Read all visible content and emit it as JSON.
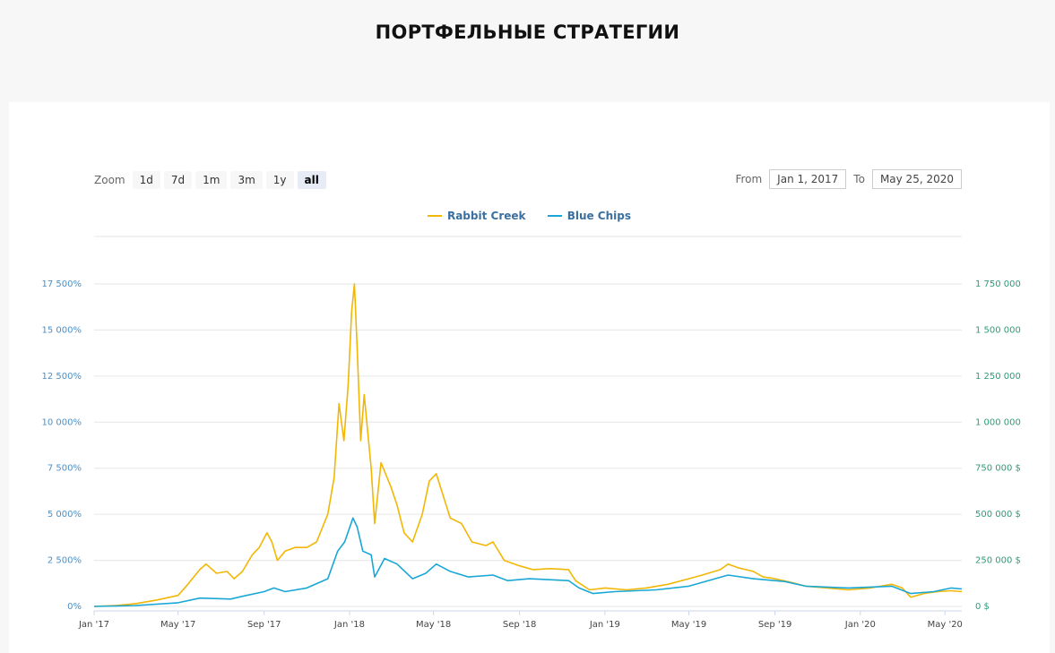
{
  "page": {
    "title": "ПОРТФЕЛЬНЫЕ СТРАТЕГИИ"
  },
  "zoom": {
    "label": "Zoom",
    "buttons": [
      "1d",
      "7d",
      "1m",
      "3m",
      "1y",
      "all"
    ],
    "selected": "all"
  },
  "range": {
    "from_label": "From",
    "from_value": "Jan 1, 2017",
    "to_label": "To",
    "to_value": "May 25, 2020"
  },
  "colors": {
    "rabbit_creek": "#f2b705",
    "blue_chips": "#1aa7d6"
  },
  "chart_data": {
    "type": "line",
    "x_range": [
      "2017-01-01",
      "2020-05-25"
    ],
    "x_ticks": [
      "Jan '17",
      "May '17",
      "Sep '17",
      "Jan '18",
      "May '18",
      "Sep '18",
      "Jan '19",
      "May '19",
      "Sep '19",
      "Jan '20",
      "May '20"
    ],
    "y_left_ticks": [
      "0%",
      "2 500%",
      "5 000%",
      "7 500%",
      "10 000%",
      "12 500%",
      "15 000%",
      "17 500%"
    ],
    "y_left_range": [
      0,
      17500
    ],
    "y_right_ticks": [
      "0 $",
      "250 000 $",
      "500 000 $",
      "750 000 $",
      "1 000 000",
      "1 250 000",
      "1 500 000",
      "1 750 000"
    ],
    "y_right_range": [
      0,
      1750000
    ],
    "grid": true,
    "legend_position": "top-center",
    "series": [
      {
        "name": "Rabbit Creek",
        "color": "#f2b705",
        "points": [
          [
            "2017-01-01",
            0
          ],
          [
            "2017-02-01",
            50
          ],
          [
            "2017-03-01",
            150
          ],
          [
            "2017-04-01",
            350
          ],
          [
            "2017-05-01",
            600
          ],
          [
            "2017-05-15",
            1200
          ],
          [
            "2017-06-01",
            2000
          ],
          [
            "2017-06-10",
            2300
          ],
          [
            "2017-06-25",
            1800
          ],
          [
            "2017-07-10",
            1900
          ],
          [
            "2017-07-20",
            1500
          ],
          [
            "2017-08-01",
            1900
          ],
          [
            "2017-08-15",
            2800
          ],
          [
            "2017-08-25",
            3200
          ],
          [
            "2017-09-05",
            4000
          ],
          [
            "2017-09-12",
            3500
          ],
          [
            "2017-09-20",
            2500
          ],
          [
            "2017-10-01",
            3000
          ],
          [
            "2017-10-15",
            3200
          ],
          [
            "2017-11-01",
            3200
          ],
          [
            "2017-11-15",
            3500
          ],
          [
            "2017-12-01",
            5000
          ],
          [
            "2017-12-10",
            7000
          ],
          [
            "2017-12-17",
            11000
          ],
          [
            "2017-12-24",
            9000
          ],
          [
            "2017-12-30",
            12000
          ],
          [
            "2018-01-04",
            16000
          ],
          [
            "2018-01-08",
            17500
          ],
          [
            "2018-01-12",
            14000
          ],
          [
            "2018-01-17",
            9000
          ],
          [
            "2018-01-22",
            11500
          ],
          [
            "2018-02-01",
            7500
          ],
          [
            "2018-02-06",
            4500
          ],
          [
            "2018-02-15",
            7800
          ],
          [
            "2018-03-01",
            6500
          ],
          [
            "2018-03-10",
            5500
          ],
          [
            "2018-03-20",
            4000
          ],
          [
            "2018-04-01",
            3500
          ],
          [
            "2018-04-15",
            5000
          ],
          [
            "2018-04-25",
            6800
          ],
          [
            "2018-05-05",
            7200
          ],
          [
            "2018-05-15",
            6000
          ],
          [
            "2018-05-25",
            4800
          ],
          [
            "2018-06-10",
            4500
          ],
          [
            "2018-06-25",
            3500
          ],
          [
            "2018-07-15",
            3300
          ],
          [
            "2018-07-25",
            3500
          ],
          [
            "2018-08-10",
            2500
          ],
          [
            "2018-09-01",
            2200
          ],
          [
            "2018-09-20",
            2000
          ],
          [
            "2018-10-15",
            2050
          ],
          [
            "2018-11-10",
            2000
          ],
          [
            "2018-11-20",
            1400
          ],
          [
            "2018-12-10",
            900
          ],
          [
            "2019-01-01",
            1000
          ],
          [
            "2019-02-01",
            900
          ],
          [
            "2019-03-01",
            1000
          ],
          [
            "2019-04-01",
            1200
          ],
          [
            "2019-05-01",
            1500
          ],
          [
            "2019-05-20",
            1700
          ],
          [
            "2019-06-15",
            2000
          ],
          [
            "2019-06-26",
            2300
          ],
          [
            "2019-07-10",
            2100
          ],
          [
            "2019-08-01",
            1900
          ],
          [
            "2019-08-15",
            1600
          ],
          [
            "2019-09-01",
            1500
          ],
          [
            "2019-09-25",
            1300
          ],
          [
            "2019-10-15",
            1100
          ],
          [
            "2019-11-15",
            1000
          ],
          [
            "2019-12-15",
            900
          ],
          [
            "2020-01-15",
            1000
          ],
          [
            "2020-02-15",
            1200
          ],
          [
            "2020-03-01",
            1000
          ],
          [
            "2020-03-13",
            500
          ],
          [
            "2020-04-01",
            700
          ],
          [
            "2020-04-20",
            800
          ],
          [
            "2020-05-10",
            850
          ],
          [
            "2020-05-25",
            800
          ]
        ]
      },
      {
        "name": "Blue Chips",
        "color": "#1aa7d6",
        "points": [
          [
            "2017-01-01",
            0
          ],
          [
            "2017-03-01",
            50
          ],
          [
            "2017-05-01",
            200
          ],
          [
            "2017-06-01",
            450
          ],
          [
            "2017-07-15",
            400
          ],
          [
            "2017-08-01",
            550
          ],
          [
            "2017-09-01",
            800
          ],
          [
            "2017-09-15",
            1000
          ],
          [
            "2017-10-01",
            800
          ],
          [
            "2017-11-01",
            1000
          ],
          [
            "2017-12-01",
            1500
          ],
          [
            "2017-12-15",
            3000
          ],
          [
            "2017-12-25",
            3500
          ],
          [
            "2018-01-06",
            4800
          ],
          [
            "2018-01-12",
            4300
          ],
          [
            "2018-01-20",
            3000
          ],
          [
            "2018-02-01",
            2800
          ],
          [
            "2018-02-06",
            1600
          ],
          [
            "2018-02-20",
            2600
          ],
          [
            "2018-03-10",
            2300
          ],
          [
            "2018-04-01",
            1500
          ],
          [
            "2018-04-20",
            1800
          ],
          [
            "2018-05-05",
            2300
          ],
          [
            "2018-05-25",
            1900
          ],
          [
            "2018-06-20",
            1600
          ],
          [
            "2018-07-25",
            1700
          ],
          [
            "2018-08-15",
            1400
          ],
          [
            "2018-09-15",
            1500
          ],
          [
            "2018-11-10",
            1400
          ],
          [
            "2018-11-25",
            1000
          ],
          [
            "2018-12-15",
            700
          ],
          [
            "2019-01-15",
            800
          ],
          [
            "2019-03-15",
            900
          ],
          [
            "2019-05-01",
            1100
          ],
          [
            "2019-06-26",
            1700
          ],
          [
            "2019-08-01",
            1500
          ],
          [
            "2019-09-15",
            1350
          ],
          [
            "2019-10-15",
            1100
          ],
          [
            "2019-12-15",
            1000
          ],
          [
            "2020-02-15",
            1100
          ],
          [
            "2020-03-13",
            700
          ],
          [
            "2020-04-15",
            800
          ],
          [
            "2020-05-10",
            1000
          ],
          [
            "2020-05-25",
            950
          ]
        ]
      }
    ]
  }
}
